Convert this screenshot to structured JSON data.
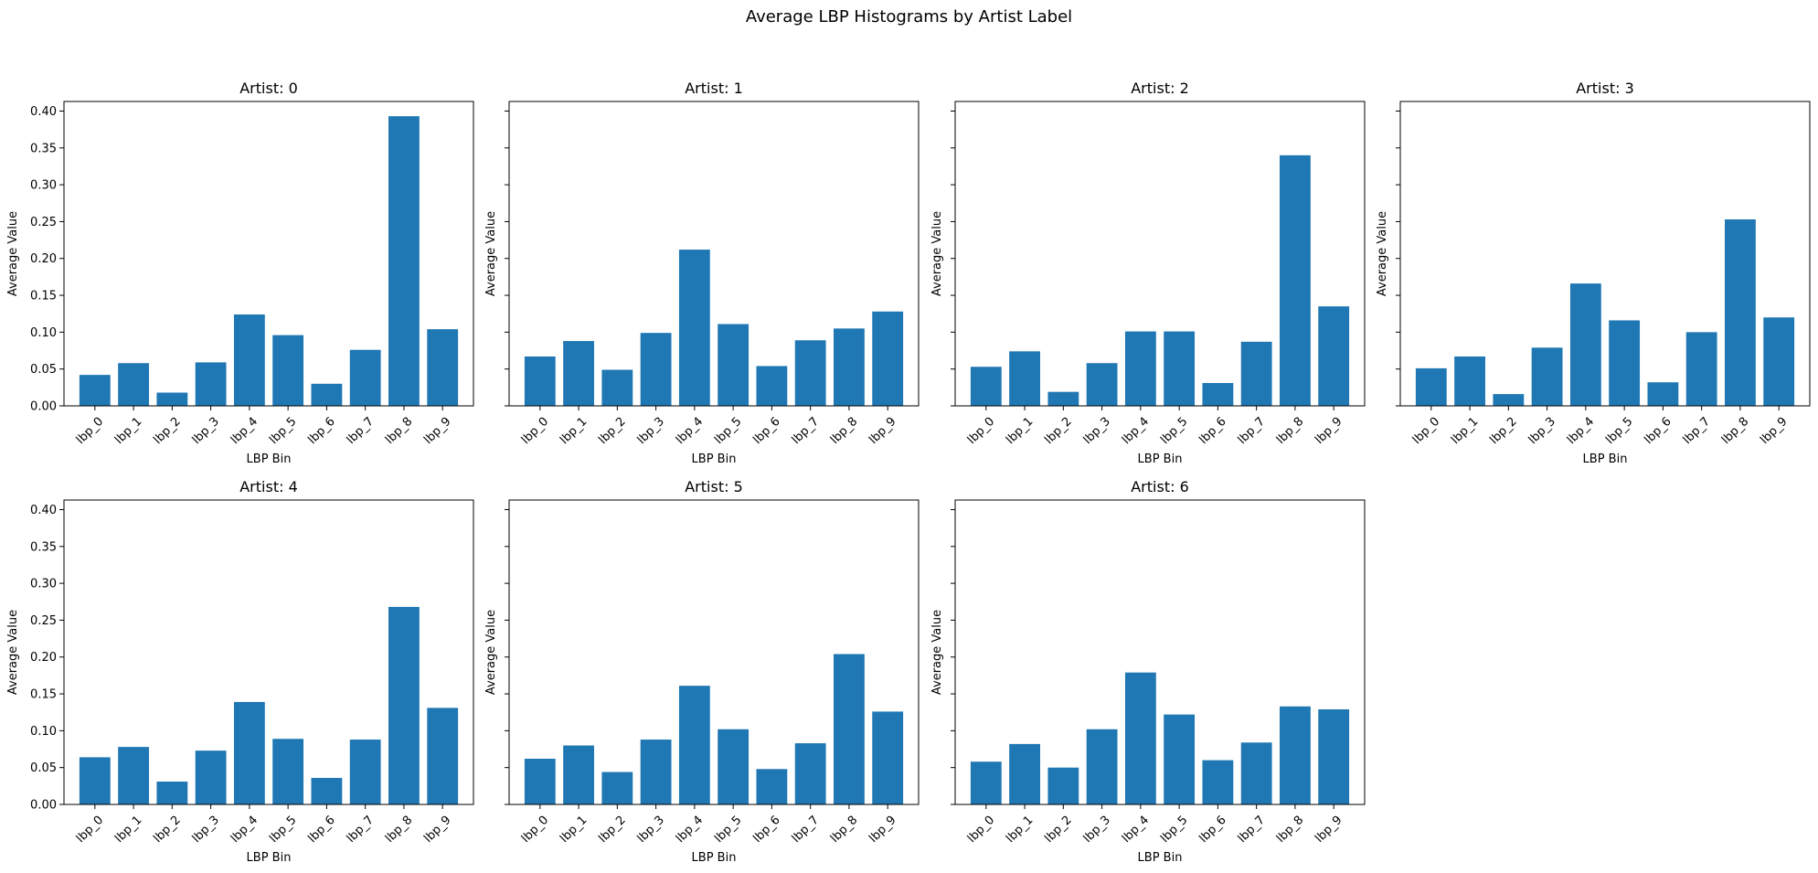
{
  "suptitle": "Average LBP Histograms by Artist Label",
  "chart_data": [
    {
      "type": "bar",
      "title": "Artist: 0",
      "xlabel": "LBP Bin",
      "ylabel": "Average Value",
      "categories": [
        "lbp_0",
        "lbp_1",
        "lbp_2",
        "lbp_3",
        "lbp_4",
        "lbp_5",
        "lbp_6",
        "lbp_7",
        "lbp_8",
        "lbp_9"
      ],
      "values": [
        0.042,
        0.058,
        0.018,
        0.059,
        0.124,
        0.096,
        0.03,
        0.076,
        0.393,
        0.104
      ],
      "ylim": [
        0,
        0.413
      ],
      "yticks": [
        "0.00",
        "0.05",
        "0.10",
        "0.15",
        "0.20",
        "0.25",
        "0.30",
        "0.35",
        "0.40"
      ],
      "show_ytick_labels": true
    },
    {
      "type": "bar",
      "title": "Artist: 1",
      "xlabel": "LBP Bin",
      "ylabel": "Average Value",
      "categories": [
        "lbp_0",
        "lbp_1",
        "lbp_2",
        "lbp_3",
        "lbp_4",
        "lbp_5",
        "lbp_6",
        "lbp_7",
        "lbp_8",
        "lbp_9"
      ],
      "values": [
        0.067,
        0.088,
        0.049,
        0.099,
        0.212,
        0.111,
        0.054,
        0.089,
        0.105,
        0.128
      ],
      "ylim": [
        0,
        0.413
      ],
      "yticks": [
        "0.00",
        "0.05",
        "0.10",
        "0.15",
        "0.20",
        "0.25",
        "0.30",
        "0.35",
        "0.40"
      ],
      "show_ytick_labels": false
    },
    {
      "type": "bar",
      "title": "Artist: 2",
      "xlabel": "LBP Bin",
      "ylabel": "Average Value",
      "categories": [
        "lbp_0",
        "lbp_1",
        "lbp_2",
        "lbp_3",
        "lbp_4",
        "lbp_5",
        "lbp_6",
        "lbp_7",
        "lbp_8",
        "lbp_9"
      ],
      "values": [
        0.053,
        0.074,
        0.019,
        0.058,
        0.101,
        0.101,
        0.031,
        0.087,
        0.34,
        0.135
      ],
      "ylim": [
        0,
        0.413
      ],
      "yticks": [
        "0.00",
        "0.05",
        "0.10",
        "0.15",
        "0.20",
        "0.25",
        "0.30",
        "0.35",
        "0.40"
      ],
      "show_ytick_labels": false
    },
    {
      "type": "bar",
      "title": "Artist: 3",
      "xlabel": "LBP Bin",
      "ylabel": "Average Value",
      "categories": [
        "lbp_0",
        "lbp_1",
        "lbp_2",
        "lbp_3",
        "lbp_4",
        "lbp_5",
        "lbp_6",
        "lbp_7",
        "lbp_8",
        "lbp_9"
      ],
      "values": [
        0.051,
        0.067,
        0.016,
        0.079,
        0.166,
        0.116,
        0.032,
        0.1,
        0.253,
        0.12
      ],
      "ylim": [
        0,
        0.413
      ],
      "yticks": [
        "0.00",
        "0.05",
        "0.10",
        "0.15",
        "0.20",
        "0.25",
        "0.30",
        "0.35",
        "0.40"
      ],
      "show_ytick_labels": false
    },
    {
      "type": "bar",
      "title": "Artist: 4",
      "xlabel": "LBP Bin",
      "ylabel": "Average Value",
      "categories": [
        "lbp_0",
        "lbp_1",
        "lbp_2",
        "lbp_3",
        "lbp_4",
        "lbp_5",
        "lbp_6",
        "lbp_7",
        "lbp_8",
        "lbp_9"
      ],
      "values": [
        0.064,
        0.078,
        0.031,
        0.073,
        0.139,
        0.089,
        0.036,
        0.088,
        0.268,
        0.131
      ],
      "ylim": [
        0,
        0.413
      ],
      "yticks": [
        "0.00",
        "0.05",
        "0.10",
        "0.15",
        "0.20",
        "0.25",
        "0.30",
        "0.35",
        "0.40"
      ],
      "show_ytick_labels": true
    },
    {
      "type": "bar",
      "title": "Artist: 5",
      "xlabel": "LBP Bin",
      "ylabel": "Average Value",
      "categories": [
        "lbp_0",
        "lbp_1",
        "lbp_2",
        "lbp_3",
        "lbp_4",
        "lbp_5",
        "lbp_6",
        "lbp_7",
        "lbp_8",
        "lbp_9"
      ],
      "values": [
        0.062,
        0.08,
        0.044,
        0.088,
        0.161,
        0.102,
        0.048,
        0.083,
        0.204,
        0.126
      ],
      "ylim": [
        0,
        0.413
      ],
      "yticks": [
        "0.00",
        "0.05",
        "0.10",
        "0.15",
        "0.20",
        "0.25",
        "0.30",
        "0.35",
        "0.40"
      ],
      "show_ytick_labels": false
    },
    {
      "type": "bar",
      "title": "Artist: 6",
      "xlabel": "LBP Bin",
      "ylabel": "Average Value",
      "categories": [
        "lbp_0",
        "lbp_1",
        "lbp_2",
        "lbp_3",
        "lbp_4",
        "lbp_5",
        "lbp_6",
        "lbp_7",
        "lbp_8",
        "lbp_9"
      ],
      "values": [
        0.058,
        0.082,
        0.05,
        0.102,
        0.179,
        0.122,
        0.06,
        0.084,
        0.133,
        0.129
      ],
      "ylim": [
        0,
        0.413
      ],
      "yticks": [
        "0.00",
        "0.05",
        "0.10",
        "0.15",
        "0.20",
        "0.25",
        "0.30",
        "0.35",
        "0.40"
      ],
      "show_ytick_labels": false
    }
  ],
  "colors": {
    "bar": "#1f77b4",
    "axis": "#000000",
    "background": "#ffffff"
  }
}
